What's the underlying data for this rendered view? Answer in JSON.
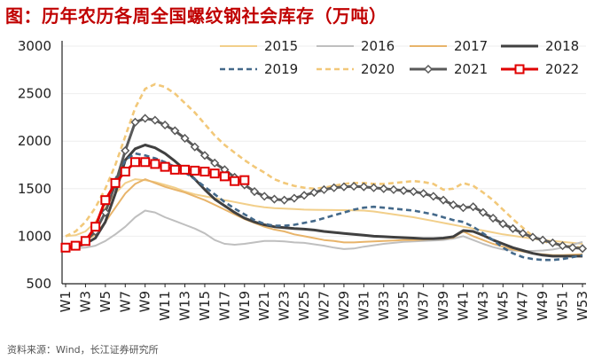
{
  "title": "图：历年农历各周全国螺纹钢社会库存（万吨）",
  "source": "资料来源：Wind，长江证券研究所",
  "chart_data": {
    "type": "line",
    "title": "图：历年农历各周全国螺纹钢社会库存（万吨）",
    "xlabel": "",
    "ylabel": "",
    "ylim": [
      500,
      3000
    ],
    "yticks": [
      500,
      1000,
      1500,
      2000,
      2500,
      3000
    ],
    "xtick_labels": [
      "W1",
      "W3",
      "W5",
      "W7",
      "W9",
      "W11",
      "W13",
      "W15",
      "W17",
      "W19",
      "W21",
      "W23",
      "W25",
      "W27",
      "W29",
      "W31",
      "W33",
      "W35",
      "W37",
      "W39",
      "W41",
      "W43",
      "W45",
      "W47",
      "W49",
      "W51",
      "W53"
    ],
    "weeks": 53,
    "legend_position": "top",
    "series": [
      {
        "name": "2015",
        "color": "#f2cf8a",
        "style": "solid",
        "marker": "none",
        "values": [
          1000,
          1010,
          1050,
          1150,
          1300,
          1450,
          1560,
          1600,
          1590,
          1570,
          1540,
          1510,
          1470,
          1440,
          1420,
          1400,
          1380,
          1360,
          1340,
          1320,
          1305,
          1295,
          1290,
          1285,
          1280,
          1278,
          1276,
          1275,
          1274,
          1272,
          1270,
          1260,
          1245,
          1230,
          1215,
          1200,
          1180,
          1160,
          1140,
          1120,
          1100,
          1080,
          1060,
          1040,
          1020,
          1005,
          990,
          975,
          960,
          950,
          940,
          930,
          920
        ]
      },
      {
        "name": "2016",
        "color": "#bfbfbf",
        "style": "solid",
        "marker": "none",
        "values": [
          870,
          875,
          880,
          900,
          950,
          1020,
          1100,
          1200,
          1270,
          1250,
          1200,
          1160,
          1120,
          1080,
          1030,
          960,
          920,
          910,
          920,
          935,
          950,
          950,
          945,
          935,
          930,
          915,
          900,
          880,
          865,
          870,
          890,
          905,
          920,
          930,
          940,
          945,
          950,
          955,
          960,
          975,
          1000,
          960,
          920,
          885,
          860,
          850,
          845,
          845,
          850,
          860,
          880,
          910,
          940
        ]
      },
      {
        "name": "2017",
        "color": "#e8b46a",
        "style": "solid",
        "marker": "none",
        "values": [
          880,
          900,
          950,
          1020,
          1150,
          1300,
          1450,
          1550,
          1600,
          1560,
          1520,
          1490,
          1460,
          1420,
          1380,
          1330,
          1280,
          1230,
          1180,
          1140,
          1100,
          1070,
          1050,
          1020,
          1000,
          980,
          960,
          950,
          935,
          935,
          940,
          945,
          950,
          955,
          960,
          960,
          965,
          970,
          975,
          985,
          1050,
          1000,
          960,
          920,
          890,
          860,
          840,
          820,
          810,
          800,
          800,
          805,
          810
        ]
      },
      {
        "name": "2018",
        "color": "#404040",
        "style": "solid",
        "marker": "none",
        "values": [
          870,
          890,
          920,
          980,
          1150,
          1450,
          1800,
          1920,
          1960,
          1930,
          1870,
          1790,
          1700,
          1600,
          1490,
          1390,
          1320,
          1250,
          1190,
          1150,
          1120,
          1100,
          1090,
          1080,
          1075,
          1065,
          1050,
          1040,
          1030,
          1020,
          1010,
          1000,
          995,
          990,
          985,
          980,
          975,
          975,
          980,
          995,
          1060,
          1050,
          1010,
          960,
          920,
          880,
          850,
          820,
          800,
          790,
          790,
          790,
          790
        ]
      },
      {
        "name": "2019",
        "color": "#44698a",
        "style": "dash",
        "marker": "none",
        "values": [
          870,
          890,
          950,
          1100,
          1350,
          1600,
          1800,
          1870,
          1850,
          1820,
          1780,
          1730,
          1670,
          1600,
          1520,
          1440,
          1360,
          1290,
          1230,
          1170,
          1130,
          1110,
          1110,
          1120,
          1140,
          1160,
          1190,
          1220,
          1250,
          1280,
          1300,
          1310,
          1300,
          1290,
          1280,
          1270,
          1250,
          1230,
          1200,
          1170,
          1150,
          1100,
          1030,
          960,
          880,
          820,
          780,
          760,
          750,
          750,
          760,
          780,
          800
        ]
      },
      {
        "name": "2020",
        "color": "#f2c879",
        "style": "dash",
        "marker": "none",
        "values": [
          1000,
          1050,
          1150,
          1300,
          1500,
          1750,
          2050,
          2350,
          2550,
          2600,
          2570,
          2500,
          2400,
          2300,
          2180,
          2060,
          1960,
          1880,
          1800,
          1730,
          1670,
          1600,
          1560,
          1530,
          1510,
          1500,
          1510,
          1530,
          1550,
          1560,
          1560,
          1550,
          1550,
          1560,
          1570,
          1580,
          1570,
          1550,
          1490,
          1500,
          1560,
          1530,
          1460,
          1380,
          1280,
          1180,
          1090,
          1000,
          950,
          920,
          900,
          890,
          880
        ]
      },
      {
        "name": "2021",
        "color": "#595959",
        "style": "solid",
        "marker": "diamond",
        "values": [
          880,
          900,
          950,
          1050,
          1250,
          1550,
          1900,
          2200,
          2240,
          2220,
          2170,
          2110,
          2030,
          1940,
          1850,
          1770,
          1700,
          1620,
          1540,
          1470,
          1420,
          1390,
          1380,
          1400,
          1430,
          1460,
          1490,
          1510,
          1520,
          1525,
          1520,
          1510,
          1500,
          1490,
          1480,
          1470,
          1450,
          1420,
          1380,
          1330,
          1300,
          1310,
          1250,
          1190,
          1130,
          1080,
          1030,
          990,
          960,
          930,
          900,
          880,
          870
        ]
      },
      {
        "name": "2022",
        "color": "#e00000",
        "style": "solid",
        "marker": "square",
        "values": [
          880,
          900,
          950,
          1100,
          1380,
          1560,
          1680,
          1780,
          1780,
          1760,
          1730,
          1700,
          1700,
          1690,
          1680,
          1660,
          1630,
          1580,
          1590
        ]
      }
    ]
  }
}
